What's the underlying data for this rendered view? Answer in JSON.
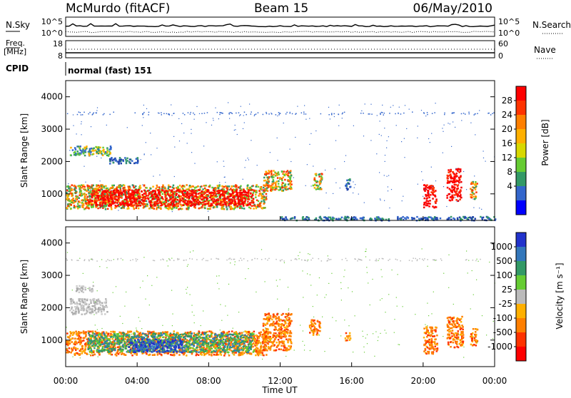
{
  "header": {
    "station": "McMurdo (fitACF)",
    "beam": "Beam 15",
    "date": "06/May/2010"
  },
  "top_panels": {
    "nsky_label": "N.Sky",
    "nsky_ticks": [
      "10^5",
      "10^0"
    ],
    "nsearch_label": "N.Search",
    "nsearch_ticks": [
      "10^5",
      "10^0"
    ],
    "freq_label": "Freq.",
    "freq_unit": "[MHz]",
    "freq_ticks": [
      "18",
      "8"
    ],
    "nave_label": "Nave",
    "nave_ticks": [
      "60",
      "0"
    ],
    "cpid_label": "CPID",
    "cpid_value": "normal (fast) 151"
  },
  "chart_data": [
    {
      "type": "heatmap",
      "name": "power",
      "ylabel": "Slant Range [km]",
      "ylim": [
        180,
        4500
      ],
      "yticks": [
        "1000",
        "2000",
        "3000",
        "4000"
      ],
      "xlim": [
        0,
        24
      ],
      "colorbar": {
        "label": "Power [dB]",
        "ticks": [
          "28",
          "24",
          "20",
          "16",
          "12",
          "8",
          "4"
        ],
        "colors": [
          "#ff0000",
          "#ff3300",
          "#ff7f00",
          "#ffb000",
          "#d8d800",
          "#66cc33",
          "#339966",
          "#3366cc",
          "#0000ff"
        ]
      },
      "regions": [
        {
          "t0": 0.0,
          "t1": 11.2,
          "r0": 550,
          "r1": 1300,
          "level": "mid"
        },
        {
          "t0": 1.2,
          "t1": 10.5,
          "r0": 650,
          "r1": 1150,
          "level": "high"
        },
        {
          "t0": 11.0,
          "t1": 12.6,
          "r0": 1100,
          "r1": 1750,
          "level": "mid"
        },
        {
          "t0": 12.0,
          "t1": 24.0,
          "r0": 200,
          "r1": 320,
          "level": "low"
        },
        {
          "t0": 0.2,
          "t1": 2.5,
          "r0": 2200,
          "r1": 2500,
          "level": "lowmid"
        },
        {
          "t0": 2.4,
          "t1": 4.0,
          "r0": 1950,
          "r1": 2150,
          "level": "low"
        },
        {
          "t0": 13.8,
          "t1": 14.3,
          "r0": 1150,
          "r1": 1650,
          "level": "mid"
        },
        {
          "t0": 15.6,
          "t1": 15.9,
          "r0": 1150,
          "r1": 1500,
          "level": "low"
        },
        {
          "t0": 20.0,
          "t1": 20.7,
          "r0": 600,
          "r1": 1300,
          "level": "high"
        },
        {
          "t0": 21.3,
          "t1": 22.1,
          "r0": 800,
          "r1": 1800,
          "level": "high"
        },
        {
          "t0": 22.6,
          "t1": 23.0,
          "r0": 850,
          "r1": 1400,
          "level": "mid"
        }
      ]
    },
    {
      "type": "heatmap",
      "name": "velocity",
      "ylabel": "Slant Range [km]",
      "ylim": [
        180,
        4500
      ],
      "yticks": [
        "1000",
        "2000",
        "3000",
        "4000"
      ],
      "xlim": [
        0,
        24
      ],
      "xticks": [
        "00:00",
        "04:00",
        "08:00",
        "12:00",
        "16:00",
        "20:00",
        "00:00"
      ],
      "xlabel": "Time UT",
      "colorbar": {
        "label": "Velocity [m s⁻¹]",
        "ticks": [
          "1000",
          "500",
          "100",
          "25",
          "-25",
          "-100",
          "-500",
          "-1000"
        ],
        "colors": [
          "#2233cc",
          "#3377bb",
          "#339966",
          "#66cc33",
          "#bbbbbb",
          "#ffb000",
          "#ff7f00",
          "#ff3300",
          "#ff0000"
        ]
      },
      "regions": [
        {
          "t0": 0.0,
          "t1": 11.2,
          "r0": 550,
          "r1": 1300,
          "level": "orange"
        },
        {
          "t0": 1.2,
          "t1": 10.5,
          "r0": 650,
          "r1": 1250,
          "level": "green"
        },
        {
          "t0": 3.5,
          "t1": 6.5,
          "r0": 650,
          "r1": 1050,
          "level": "blue"
        },
        {
          "t0": 11.0,
          "t1": 12.6,
          "r0": 700,
          "r1": 1850,
          "level": "orange"
        },
        {
          "t0": 0.2,
          "t1": 2.3,
          "r0": 1800,
          "r1": 2300,
          "level": "grey"
        },
        {
          "t0": 0.5,
          "t1": 1.5,
          "r0": 2500,
          "r1": 2700,
          "level": "grey"
        },
        {
          "t0": 13.6,
          "t1": 14.2,
          "r0": 1150,
          "r1": 1650,
          "level": "orange"
        },
        {
          "t0": 15.6,
          "t1": 15.9,
          "r0": 950,
          "r1": 1250,
          "level": "orange"
        },
        {
          "t0": 20.0,
          "t1": 20.8,
          "r0": 600,
          "r1": 1450,
          "level": "orange"
        },
        {
          "t0": 21.3,
          "t1": 22.2,
          "r0": 800,
          "r1": 1750,
          "level": "orange"
        },
        {
          "t0": 22.6,
          "t1": 23.0,
          "r0": 850,
          "r1": 1400,
          "level": "orange"
        }
      ]
    }
  ]
}
